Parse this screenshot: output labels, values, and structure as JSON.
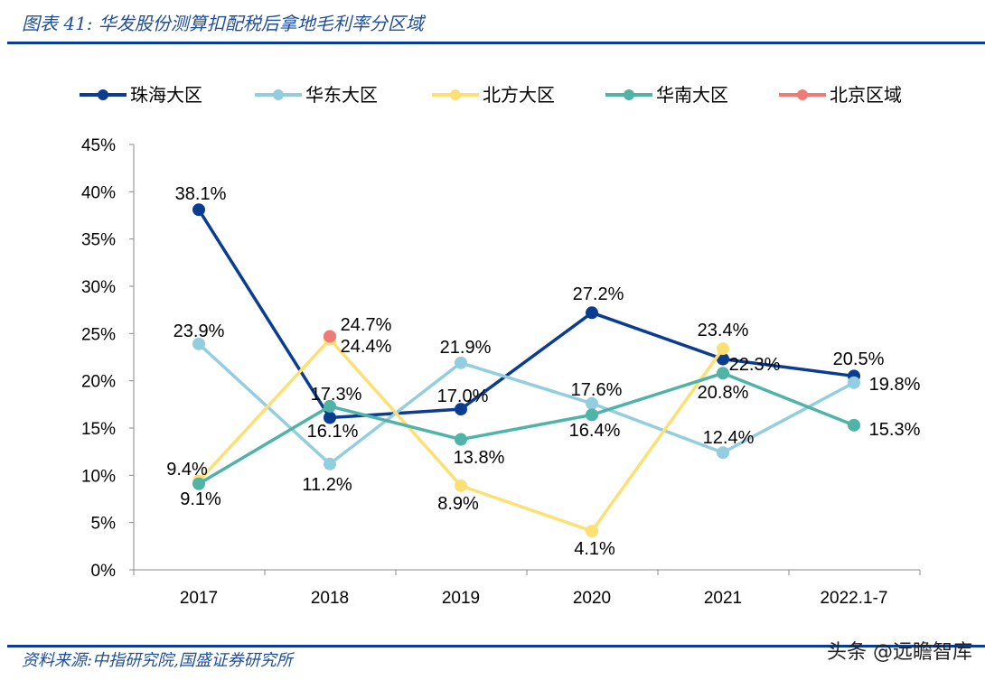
{
  "header": {
    "title": "图表 41:  华发股份测算扣配税后拿地毛利率分区域"
  },
  "footer": {
    "source": "资料来源:中指研究院,国盛证券研究所",
    "watermark": "头条 @远瞻智库"
  },
  "chart_data": {
    "type": "line",
    "title": "",
    "xlabel": "",
    "ylabel": "",
    "categories": [
      "2017",
      "2018",
      "2019",
      "2020",
      "2021",
      "2022.1-7"
    ],
    "ylim": [
      0,
      45
    ],
    "yticks": [
      "0%",
      "5%",
      "10%",
      "15%",
      "20%",
      "25%",
      "30%",
      "35%",
      "40%",
      "45%"
    ],
    "grid": false,
    "legend_position": "top",
    "series": [
      {
        "name": "珠海大区",
        "color": "#0a3d91",
        "values": [
          38.1,
          16.1,
          17.0,
          27.2,
          22.3,
          20.5
        ],
        "labels": [
          "38.1%",
          "16.1%",
          "17.0%",
          "27.2%",
          "22.3%",
          "20.5%"
        ]
      },
      {
        "name": "华东大区",
        "color": "#93cde0",
        "values": [
          23.9,
          11.2,
          21.9,
          17.6,
          12.4,
          19.8
        ],
        "labels": [
          "23.9%",
          "11.2%",
          "21.9%",
          "17.6%",
          "12.4%",
          "19.8%"
        ]
      },
      {
        "name": "北方大区",
        "color": "#fde074",
        "values": [
          9.4,
          24.4,
          8.9,
          4.1,
          23.4,
          null
        ],
        "labels": [
          "9.4%",
          "24.4%",
          "8.9%",
          "4.1%",
          "23.4%",
          ""
        ]
      },
      {
        "name": "华南大区",
        "color": "#4fb3a8",
        "values": [
          9.1,
          17.3,
          13.8,
          16.4,
          20.8,
          15.3
        ],
        "labels": [
          "9.1%",
          "17.3%",
          "13.8%",
          "16.4%",
          "20.8%",
          "15.3%"
        ]
      },
      {
        "name": "北京区域",
        "color": "#f07b76",
        "values": [
          null,
          24.7,
          null,
          null,
          null,
          null
        ],
        "labels": [
          "",
          "24.7%",
          "",
          "",
          "",
          ""
        ]
      }
    ]
  }
}
